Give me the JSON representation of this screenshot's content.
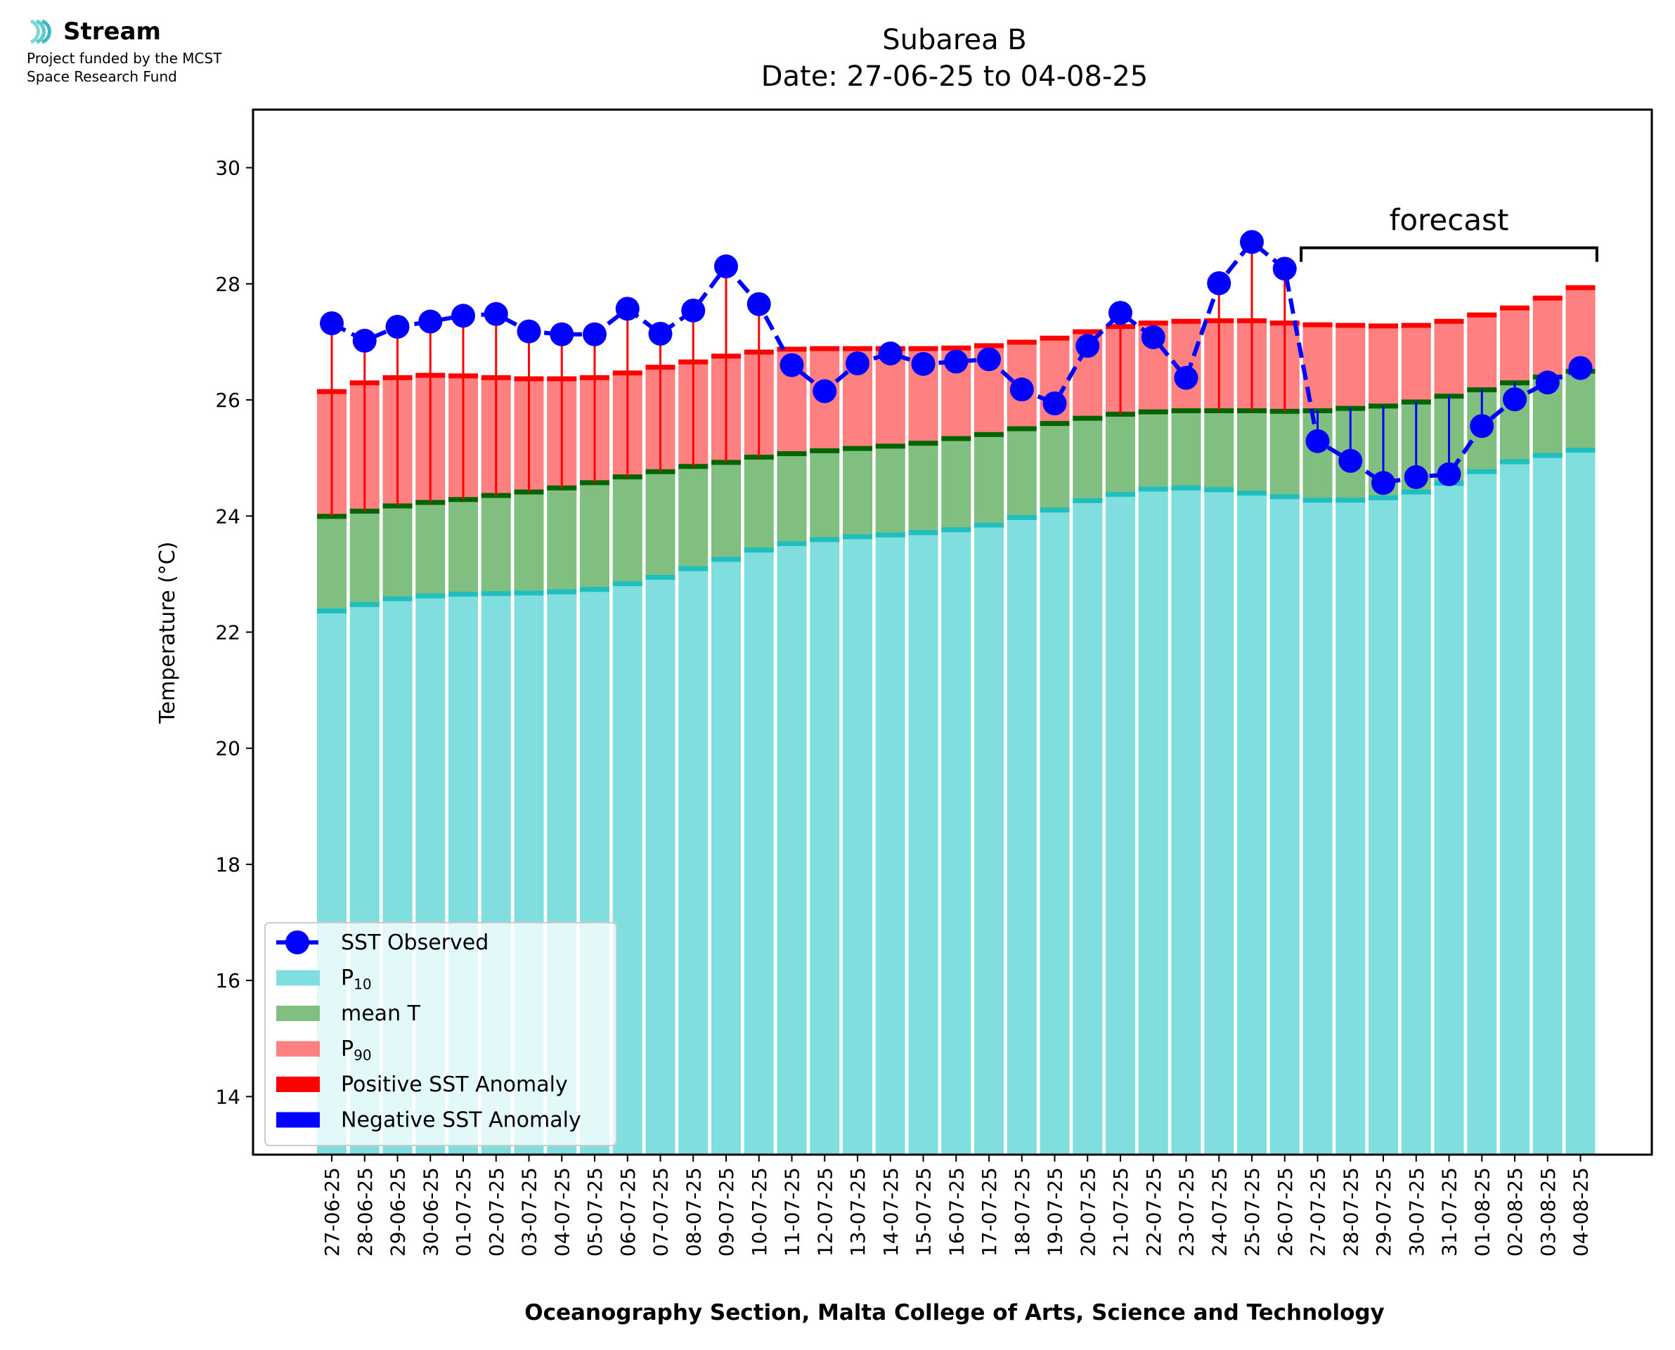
{
  "logo": {
    "name": "Stream",
    "subtitle_line1": "Project funded by the MCST",
    "subtitle_line2": "Space Research Fund"
  },
  "chart_data": {
    "type": "bar",
    "title_line1": "Subarea B",
    "title_line2": "Date: 27-06-25 to 04-08-25",
    "xlabel": "Oceanography Section, Malta College of Arts, Science and Technology",
    "ylabel": "Temperature (°C)",
    "ylim": [
      13,
      31
    ],
    "yticks": [
      14,
      16,
      18,
      20,
      22,
      24,
      26,
      28,
      30
    ],
    "grid": false,
    "legend_position": "lower-left",
    "annotation": "forecast",
    "forecast_start": "27-07-25",
    "forecast_end": "04-08-25",
    "colors": {
      "p10": "#80DEDE",
      "p10_edge": "#20BFBF",
      "mean": "#80BF80",
      "mean_edge": "#006400",
      "p90": "#FF8080",
      "p90_edge": "#FF0000",
      "positive_anomaly": "#FF0000",
      "negative_anomaly": "#0000FF",
      "sst": "#0000FF"
    },
    "legend": [
      {
        "label": "SST Observed",
        "key": "sst"
      },
      {
        "label": "P",
        "sub": "10",
        "key": "p10"
      },
      {
        "label": "mean T",
        "key": "mean"
      },
      {
        "label": "P",
        "sub": "90",
        "key": "p90"
      },
      {
        "label": "Positive SST Anomaly",
        "key": "positive_anomaly"
      },
      {
        "label": "Negative SST Anomaly",
        "key": "negative_anomaly"
      }
    ],
    "categories": [
      "27-06-25",
      "28-06-25",
      "29-06-25",
      "30-06-25",
      "01-07-25",
      "02-07-25",
      "03-07-25",
      "04-07-25",
      "05-07-25",
      "06-07-25",
      "07-07-25",
      "08-07-25",
      "09-07-25",
      "10-07-25",
      "11-07-25",
      "12-07-25",
      "13-07-25",
      "14-07-25",
      "15-07-25",
      "16-07-25",
      "17-07-25",
      "18-07-25",
      "19-07-25",
      "20-07-25",
      "21-07-25",
      "22-07-25",
      "23-07-25",
      "24-07-25",
      "25-07-25",
      "26-07-25",
      "27-07-25",
      "28-07-25",
      "29-07-25",
      "30-07-25",
      "31-07-25",
      "01-08-25",
      "02-08-25",
      "03-08-25",
      "04-08-25"
    ],
    "series": [
      {
        "name": "P10",
        "values": [
          22.37,
          22.48,
          22.58,
          22.63,
          22.66,
          22.67,
          22.68,
          22.7,
          22.74,
          22.84,
          22.95,
          23.1,
          23.26,
          23.42,
          23.53,
          23.6,
          23.65,
          23.68,
          23.72,
          23.77,
          23.85,
          23.98,
          24.11,
          24.27,
          24.38,
          24.47,
          24.49,
          24.46,
          24.4,
          24.34,
          24.28,
          24.28,
          24.32,
          24.42,
          24.57,
          24.77,
          24.94,
          25.05,
          25.14
        ]
      },
      {
        "name": "mean T",
        "values": [
          24.0,
          24.09,
          24.18,
          24.24,
          24.29,
          24.36,
          24.42,
          24.49,
          24.58,
          24.68,
          24.77,
          24.86,
          24.93,
          25.02,
          25.08,
          25.13,
          25.17,
          25.21,
          25.26,
          25.34,
          25.41,
          25.51,
          25.6,
          25.69,
          25.76,
          25.8,
          25.82,
          25.82,
          25.82,
          25.81,
          25.82,
          25.86,
          25.9,
          25.97,
          26.07,
          26.18,
          26.3,
          26.4,
          26.5
        ]
      },
      {
        "name": "P90",
        "values": [
          26.15,
          26.3,
          26.39,
          26.43,
          26.42,
          26.39,
          26.37,
          26.37,
          26.39,
          26.47,
          26.57,
          26.66,
          26.76,
          26.83,
          26.88,
          26.89,
          26.89,
          26.89,
          26.89,
          26.9,
          26.94,
          27.0,
          27.07,
          27.18,
          27.27,
          27.33,
          27.36,
          27.37,
          27.37,
          27.33,
          27.3,
          27.29,
          27.28,
          27.29,
          27.36,
          27.47,
          27.59,
          27.76,
          27.94
        ]
      },
      {
        "name": "SST Observed",
        "values": [
          27.32,
          27.02,
          27.26,
          27.35,
          27.45,
          27.48,
          27.18,
          27.13,
          27.13,
          27.57,
          27.14,
          27.54,
          28.3,
          27.65,
          26.6,
          26.15,
          26.63,
          26.8,
          26.62,
          26.66,
          26.7,
          26.18,
          25.94,
          26.93,
          27.5,
          27.08,
          26.38,
          28.01,
          28.72,
          28.26,
          25.29,
          24.95,
          24.57,
          24.67,
          24.72,
          25.55,
          26.01,
          26.3,
          26.55
        ]
      }
    ]
  }
}
